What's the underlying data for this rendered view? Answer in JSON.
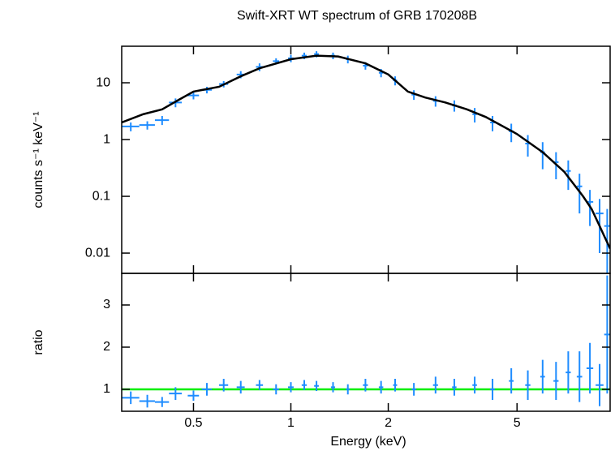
{
  "chart_data": [
    {
      "type": "spectrum",
      "title": "Swift-XRT WT spectrum of GRB 170208B",
      "ylabel": "counts s⁻¹ keV⁻¹",
      "log_y": true,
      "ylim": [
        0.0044,
        44
      ],
      "yticks": [
        0.01,
        0.1,
        1,
        10
      ],
      "points": {
        "color": "#1e8cff",
        "x": [
          0.32,
          0.36,
          0.4,
          0.44,
          0.5,
          0.55,
          0.62,
          0.7,
          0.8,
          0.9,
          1.0,
          1.1,
          1.2,
          1.35,
          1.5,
          1.7,
          1.9,
          2.1,
          2.4,
          2.8,
          3.2,
          3.7,
          4.2,
          4.8,
          5.4,
          6.0,
          6.6,
          7.2,
          7.8,
          8.4,
          9.0,
          9.5
        ],
        "xerr": [
          0.02,
          0.02,
          0.02,
          0.02,
          0.02,
          0.02,
          0.02,
          0.02,
          0.02,
          0.02,
          0.02,
          0.02,
          0.02,
          0.02,
          0.02,
          0.03,
          0.03,
          0.03,
          0.04,
          0.05,
          0.05,
          0.06,
          0.07,
          0.08,
          0.1,
          0.1,
          0.12,
          0.13,
          0.15,
          0.2,
          0.25,
          0.2
        ],
        "values": [
          1.7,
          1.8,
          2.2,
          4.5,
          6.0,
          7.5,
          9.5,
          14,
          19,
          24,
          27,
          30,
          32,
          30,
          26,
          20,
          15,
          11,
          6.2,
          4.8,
          4.0,
          2.8,
          2.0,
          1.4,
          0.85,
          0.6,
          0.4,
          0.28,
          0.15,
          0.08,
          0.05,
          0.03
        ],
        "yerr": [
          0.3,
          0.3,
          0.4,
          0.8,
          0.9,
          1.0,
          1.2,
          2,
          3,
          3,
          4,
          4,
          4,
          4,
          4,
          3,
          2.5,
          2,
          1.2,
          1,
          0.9,
          0.8,
          0.6,
          0.5,
          0.35,
          0.3,
          0.2,
          0.15,
          0.1,
          0.05,
          0.04,
          0.03
        ]
      },
      "model": {
        "color": "#000000",
        "x": [
          0.3,
          0.35,
          0.4,
          0.45,
          0.5,
          0.6,
          0.7,
          0.8,
          1,
          1.2,
          1.4,
          1.7,
          2,
          2.3,
          2.6,
          3,
          3.5,
          4,
          5,
          6,
          7,
          8,
          8.5,
          9,
          9.3,
          9.7
        ],
        "values": [
          2,
          2.8,
          3.4,
          5,
          7,
          8.5,
          13,
          18,
          26,
          30,
          29,
          22,
          14,
          7,
          5.5,
          4.5,
          3.4,
          2.5,
          1.25,
          0.6,
          0.27,
          0.1,
          0.06,
          0.03,
          0.02,
          0.012
        ]
      }
    },
    {
      "type": "ratio",
      "ylabel": "ratio",
      "xlabel": "Energy (keV)",
      "log_x": true,
      "xlim": [
        0.3,
        9.7
      ],
      "xticks": [
        0.5,
        1,
        2,
        5
      ],
      "ylim": [
        0.48,
        3.75
      ],
      "yticks": [
        1,
        2,
        3
      ],
      "reference": {
        "value": 1,
        "color": "#00ee00"
      },
      "points": {
        "color": "#1e8cff",
        "x": [
          0.32,
          0.36,
          0.4,
          0.44,
          0.5,
          0.55,
          0.62,
          0.7,
          0.8,
          0.9,
          1.0,
          1.1,
          1.2,
          1.35,
          1.5,
          1.7,
          1.9,
          2.1,
          2.4,
          2.8,
          3.2,
          3.7,
          4.2,
          4.8,
          5.4,
          6.0,
          6.6,
          7.2,
          7.8,
          8.4,
          9.0,
          9.5
        ],
        "xerr": [
          0.02,
          0.02,
          0.02,
          0.02,
          0.02,
          0.02,
          0.02,
          0.02,
          0.02,
          0.02,
          0.02,
          0.02,
          0.02,
          0.02,
          0.02,
          0.03,
          0.03,
          0.03,
          0.04,
          0.05,
          0.05,
          0.06,
          0.07,
          0.08,
          0.1,
          0.1,
          0.12,
          0.13,
          0.15,
          0.2,
          0.25,
          0.2
        ],
        "values": [
          0.8,
          0.72,
          0.7,
          0.9,
          0.85,
          1.0,
          1.1,
          1.05,
          1.1,
          1.0,
          1.05,
          1.1,
          1.08,
          1.05,
          1.0,
          1.1,
          1.05,
          1.1,
          1.0,
          1.1,
          1.05,
          1.1,
          1.0,
          1.2,
          1.1,
          1.3,
          1.2,
          1.4,
          1.3,
          1.5,
          1.1,
          2.3
        ],
        "yerr": [
          0.15,
          0.15,
          0.12,
          0.15,
          0.12,
          0.15,
          0.15,
          0.15,
          0.12,
          0.12,
          0.12,
          0.12,
          0.12,
          0.12,
          0.12,
          0.15,
          0.15,
          0.15,
          0.15,
          0.2,
          0.2,
          0.2,
          0.25,
          0.3,
          0.35,
          0.4,
          0.45,
          0.5,
          0.6,
          0.6,
          0.5,
          1.4
        ]
      }
    }
  ]
}
